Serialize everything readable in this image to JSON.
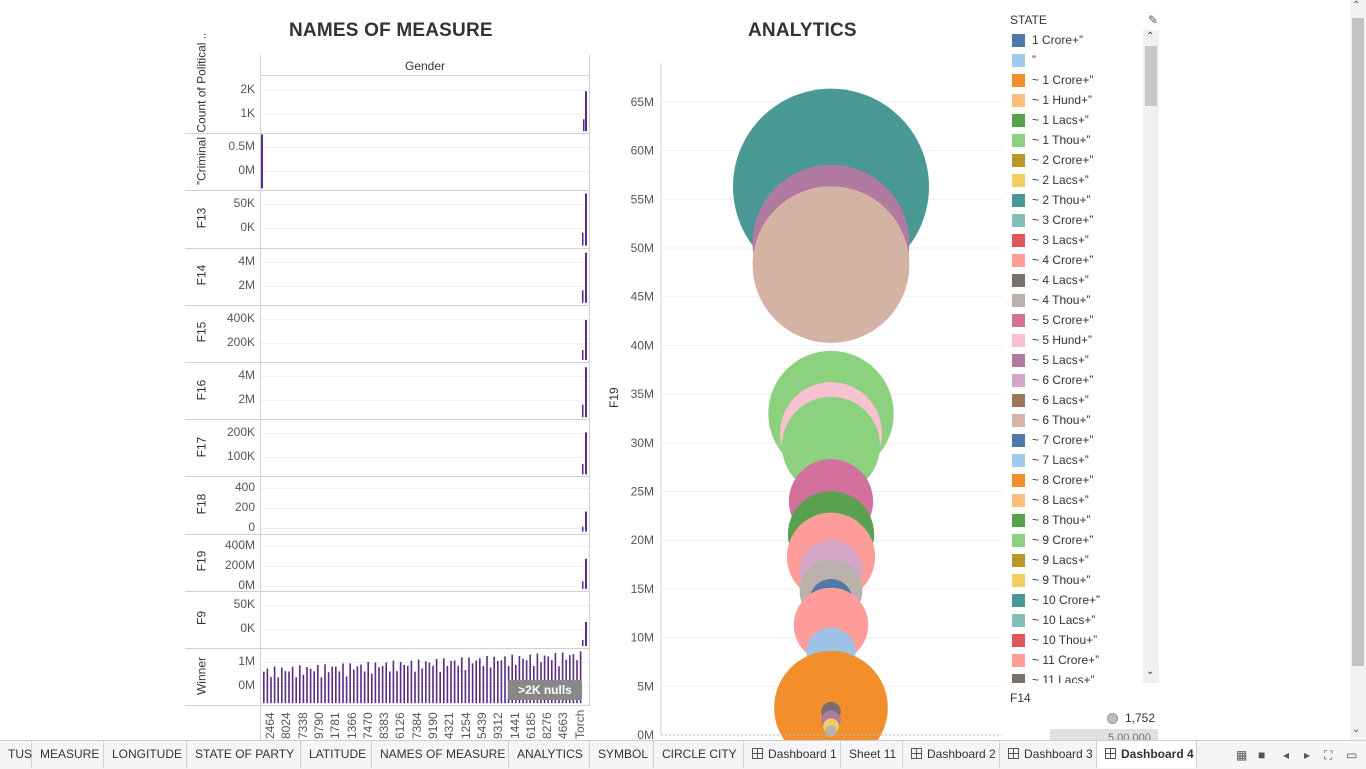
{
  "titles": {
    "left": "NAMES OF MEASURE",
    "middle": "ANALYTICS"
  },
  "left_panel": {
    "column_header": "Gender",
    "rows": [
      {
        "label": "Count of Political ..",
        "ticks": [
          "2K",
          "1K"
        ]
      },
      {
        "label": "”Criminal",
        "ticks": [
          "0.5M",
          "0M"
        ]
      },
      {
        "label": "F13",
        "ticks": [
          "50K",
          "0K"
        ]
      },
      {
        "label": "F14",
        "ticks": [
          "4M",
          "2M"
        ]
      },
      {
        "label": "F15",
        "ticks": [
          "400K",
          "200K"
        ]
      },
      {
        "label": "F16",
        "ticks": [
          "4M",
          "2M"
        ]
      },
      {
        "label": "F17",
        "ticks": [
          "200K",
          "100K"
        ]
      },
      {
        "label": "F18",
        "ticks": [
          "400",
          "200",
          "0"
        ]
      },
      {
        "label": "F19",
        "ticks": [
          "400M",
          "200M",
          "0M"
        ]
      },
      {
        "label": "F9",
        "ticks": [
          "50K",
          "0K"
        ]
      },
      {
        "label": "Winner",
        "ticks": [
          "1M",
          "0M"
        ]
      }
    ],
    "x_labels": [
      "2464",
      "8024",
      "7338",
      "9790",
      "1781",
      "1366",
      "7470",
      "8383",
      "6126",
      "7384",
      "9190",
      "4321",
      "1254",
      "5439",
      "9312",
      "1441",
      "6185",
      "8276",
      "4663",
      "Torch"
    ],
    "nulls_badge": ">2K nulls"
  },
  "chart_data": {
    "type": "scatter",
    "title": "ANALYTICS",
    "ylabel": "F19",
    "yticks": [
      "65M",
      "60M",
      "55M",
      "50M",
      "45M",
      "40M",
      "35M",
      "30M",
      "25M",
      "20M",
      "15M",
      "10M",
      "5M",
      "0M"
    ],
    "ylim": [
      0,
      69000000
    ],
    "bubbles": [
      {
        "y": 56300000,
        "size": 1.0,
        "color": "#499894"
      },
      {
        "y": 50500000,
        "size": 0.8,
        "color": "#b07aa1"
      },
      {
        "y": 48300000,
        "size": 0.8,
        "color": "#d4b2a4"
      },
      {
        "y": 33000000,
        "size": 0.64,
        "color": "#8cd17d"
      },
      {
        "y": 31000000,
        "size": 0.52,
        "color": "#f8c2d0"
      },
      {
        "y": 29700000,
        "size": 0.5,
        "color": "#8cd17d"
      },
      {
        "y": 24000000,
        "size": 0.43,
        "color": "#d3709b"
      },
      {
        "y": 20600000,
        "size": 0.44,
        "color": "#59a14f"
      },
      {
        "y": 18300000,
        "size": 0.45,
        "color": "#ff9d9a"
      },
      {
        "y": 16800000,
        "size": 0.32,
        "color": "#d4a6c8"
      },
      {
        "y": 14800000,
        "size": 0.32,
        "color": "#bab0ac"
      },
      {
        "y": 13800000,
        "size": 0.22,
        "color": "#4e79a7"
      },
      {
        "y": 11300000,
        "size": 0.38,
        "color": "#ff9d9a"
      },
      {
        "y": 8500000,
        "size": 0.25,
        "color": "#9dc3e6"
      },
      {
        "y": 2800000,
        "size": 0.58,
        "color": "#f28e2b"
      },
      {
        "y": 2400000,
        "size": 0.1,
        "color": "#79706e"
      },
      {
        "y": 1500000,
        "size": 0.1,
        "color": "#b07aa1"
      },
      {
        "y": 900000,
        "size": 0.08,
        "color": "#f1ce63"
      },
      {
        "y": 400000,
        "size": 0.06,
        "color": "#bab0ac"
      }
    ]
  },
  "legend": {
    "title": "STATE",
    "items": [
      {
        "label": "1 Crore+”",
        "color": "#4e79a7"
      },
      {
        "label": "”",
        "color": "#a0cbe8"
      },
      {
        "label": "~ 1 Crore+”",
        "color": "#f28e2b"
      },
      {
        "label": "~ 1 Hund+”",
        "color": "#ffbe7d"
      },
      {
        "label": "~ 1 Lacs+”",
        "color": "#59a14f"
      },
      {
        "label": "~ 1 Thou+”",
        "color": "#8cd17d"
      },
      {
        "label": "~ 2 Crore+”",
        "color": "#b6992d"
      },
      {
        "label": "~ 2 Lacs+”",
        "color": "#f1ce63"
      },
      {
        "label": "~ 2 Thou+”",
        "color": "#499894"
      },
      {
        "label": "~ 3 Crore+”",
        "color": "#86bcb6"
      },
      {
        "label": "~ 3 Lacs+”",
        "color": "#e15759"
      },
      {
        "label": "~ 4 Crore+”",
        "color": "#ff9d9a"
      },
      {
        "label": "~ 4 Lacs+”",
        "color": "#79706e"
      },
      {
        "label": "~ 4 Thou+”",
        "color": "#bab0ac"
      },
      {
        "label": "~ 5 Crore+”",
        "color": "#d37295"
      },
      {
        "label": "~ 5 Hund+”",
        "color": "#fabfd2"
      },
      {
        "label": "~ 5 Lacs+”",
        "color": "#b07aa1"
      },
      {
        "label": "~ 6 Crore+”",
        "color": "#d4a6c8"
      },
      {
        "label": "~ 6 Lacs+”",
        "color": "#9d7660"
      },
      {
        "label": "~ 6 Thou+”",
        "color": "#d7b5a6"
      },
      {
        "label": "~ 7 Crore+”",
        "color": "#4e79a7"
      },
      {
        "label": "~ 7 Lacs+”",
        "color": "#a0cbe8"
      },
      {
        "label": "~ 8 Crore+”",
        "color": "#f28e2b"
      },
      {
        "label": "~ 8 Lacs+”",
        "color": "#ffbe7d"
      },
      {
        "label": "~ 8 Thou+”",
        "color": "#59a14f"
      },
      {
        "label": "~ 9 Crore+”",
        "color": "#8cd17d"
      },
      {
        "label": "~ 9 Lacs+”",
        "color": "#b6992d"
      },
      {
        "label": "~ 9 Thou+”",
        "color": "#f1ce63"
      },
      {
        "label": "~ 10 Crore+”",
        "color": "#499894"
      },
      {
        "label": "~ 10 Lacs+”",
        "color": "#86bcb6"
      },
      {
        "label": "~ 10 Thou+”",
        "color": "#e15759"
      },
      {
        "label": "~ 11 Crore+”",
        "color": "#ff9d9a"
      },
      {
        "label": "~ 11 Lacs+”",
        "color": "#79706e"
      }
    ],
    "size_legend_title": "F14",
    "size_legend_value": "1,752",
    "size_legend_value2": "5,00,000"
  },
  "tabs": [
    {
      "label": "TUS",
      "icon": false,
      "active": false
    },
    {
      "label": "MEASURE",
      "icon": false,
      "active": false
    },
    {
      "label": "LONGITUDE",
      "icon": false,
      "active": false
    },
    {
      "label": "STATE OF PARTY",
      "icon": false,
      "active": false
    },
    {
      "label": "LATITUDE",
      "icon": false,
      "active": false
    },
    {
      "label": "NAMES OF MEASURE",
      "icon": false,
      "active": false
    },
    {
      "label": "ANALYTICS",
      "icon": false,
      "active": false
    },
    {
      "label": "SYMBOL",
      "icon": false,
      "active": false
    },
    {
      "label": "CIRCLE CITY",
      "icon": false,
      "active": false
    },
    {
      "label": "Dashboard 1",
      "icon": true,
      "active": false
    },
    {
      "label": "Sheet 11",
      "icon": false,
      "active": false
    },
    {
      "label": "Dashboard 2",
      "icon": true,
      "active": false
    },
    {
      "label": "Dashboard 3",
      "icon": true,
      "active": false
    },
    {
      "label": "Dashboard 4",
      "icon": true,
      "active": true
    }
  ]
}
